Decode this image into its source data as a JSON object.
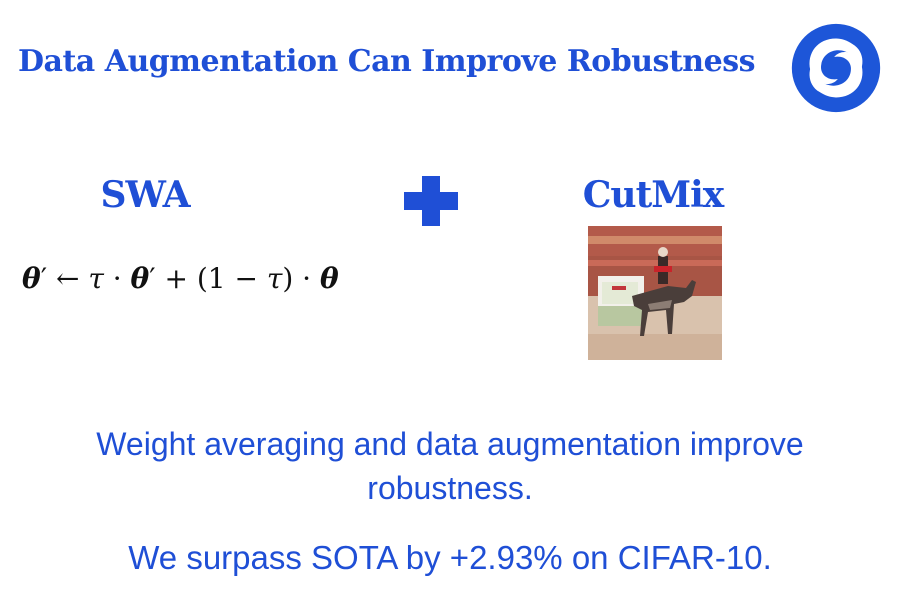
{
  "slide": {
    "title": "Data Augmentation Can Improve Robustness",
    "logo_icon": "deepmind-swirl-logo",
    "accent_color": "#1f4fd6"
  },
  "left": {
    "heading": "SWA",
    "equation": "θ′ ← τ · θ′ + (1 − τ) · θ"
  },
  "combine_icon": "plus-icon",
  "right": {
    "heading": "CutMix",
    "image_icon": "cutmix-horse-rider-image"
  },
  "captions": {
    "line1": "Weight averaging and data augmentation improve robustness.",
    "line2": "We surpass SOTA by +2.93% on CIFAR-10."
  }
}
